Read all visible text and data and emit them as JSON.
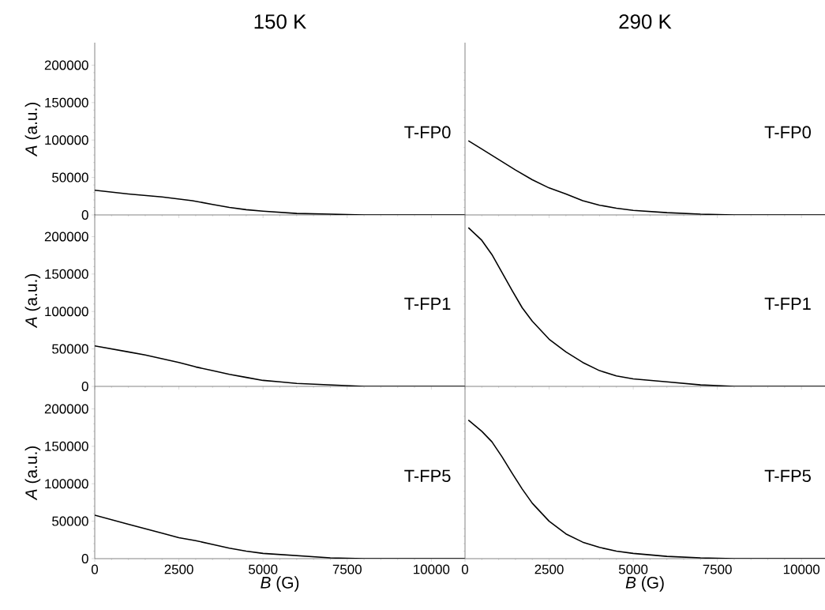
{
  "chart_data": [
    {
      "type": "line",
      "title": "150 K",
      "ylabel": "*A* (a.u.)",
      "annotations": [
        "T-FP0"
      ],
      "color": "#000000",
      "xlim": [
        0,
        11000
      ],
      "ylim": [
        0,
        230000
      ],
      "xticks": [
        0,
        2500,
        5000,
        7500,
        10000
      ],
      "yticks": [
        0,
        50000,
        100000,
        150000,
        200000
      ],
      "tick_labels": "y",
      "x": [
        0,
        1000,
        2000,
        2900,
        3500,
        4000,
        4500,
        5000,
        6000,
        7000,
        8000,
        9000,
        10000,
        11000
      ],
      "values": [
        33000,
        28000,
        24000,
        19000,
        14000,
        10000,
        7000,
        5000,
        2000,
        1000,
        0,
        0,
        0,
        0
      ]
    },
    {
      "type": "line",
      "title": "290 K",
      "annotations": [
        "T-FP0"
      ],
      "color": "#000000",
      "xlim": [
        0,
        10700
      ],
      "ylim": [
        0,
        230000
      ],
      "xticks": [
        0,
        2500,
        5000,
        7500,
        10000
      ],
      "yticks": [
        0,
        50000,
        100000,
        150000,
        200000
      ],
      "tick_labels": false,
      "x": [
        100,
        500,
        1000,
        1500,
        2000,
        2500,
        3000,
        3500,
        4000,
        4500,
        5000,
        6000,
        7000,
        8000,
        9000,
        10700
      ],
      "values": [
        99000,
        88000,
        74000,
        60000,
        47000,
        36000,
        28000,
        19000,
        13000,
        9000,
        6000,
        3000,
        1000,
        0,
        0,
        0
      ]
    },
    {
      "type": "line",
      "ylabel": "*A* (a.u.)",
      "annotations": [
        "T-FP1"
      ],
      "color": "#000000",
      "xlim": [
        0,
        11000
      ],
      "ylim": [
        0,
        230000
      ],
      "xticks": [
        0,
        2500,
        5000,
        7500,
        10000
      ],
      "yticks": [
        0,
        50000,
        100000,
        150000,
        200000
      ],
      "tick_labels": "y",
      "x": [
        0,
        1000,
        1500,
        2000,
        2500,
        3000,
        3500,
        4000,
        4500,
        5000,
        5500,
        6000,
        7000,
        8000,
        9000,
        11000
      ],
      "values": [
        54000,
        46000,
        42000,
        37000,
        32000,
        26000,
        21000,
        16000,
        12000,
        8000,
        6000,
        4000,
        2000,
        0,
        0,
        0
      ]
    },
    {
      "type": "line",
      "annotations": [
        "T-FP1"
      ],
      "color": "#000000",
      "xlim": [
        0,
        10700
      ],
      "ylim": [
        0,
        230000
      ],
      "xticks": [
        0,
        2500,
        5000,
        7500,
        10000
      ],
      "yticks": [
        0,
        50000,
        100000,
        150000,
        200000
      ],
      "tick_labels": false,
      "x": [
        100,
        500,
        800,
        1100,
        1400,
        1700,
        2000,
        2500,
        3000,
        3500,
        4000,
        4500,
        5000,
        6000,
        7000,
        8000,
        9000,
        10700
      ],
      "values": [
        212000,
        195000,
        176000,
        152000,
        128000,
        105000,
        87000,
        63000,
        46000,
        32000,
        21000,
        14000,
        10000,
        6000,
        2000,
        0,
        0,
        0
      ]
    },
    {
      "type": "line",
      "xlabel": "*B* (G)",
      "ylabel": "*A* (a.u.)",
      "annotations": [
        "T-FP5"
      ],
      "color": "#000000",
      "xlim": [
        0,
        11000
      ],
      "ylim": [
        0,
        230000
      ],
      "xticks": [
        0,
        2500,
        5000,
        7500,
        10000
      ],
      "yticks": [
        0,
        50000,
        100000,
        150000,
        200000
      ],
      "x": [
        0,
        1000,
        2000,
        2500,
        3000,
        3500,
        4000,
        4500,
        5000,
        6000,
        7000,
        8000,
        9000,
        11000
      ],
      "values": [
        58000,
        46000,
        34000,
        28000,
        24000,
        19000,
        14000,
        10000,
        7000,
        4000,
        1000,
        0,
        0,
        0
      ]
    },
    {
      "type": "line",
      "xlabel": "*B* (G)",
      "annotations": [
        "T-FP5"
      ],
      "color": "#000000",
      "xlim": [
        0,
        10700
      ],
      "ylim": [
        0,
        230000
      ],
      "xticks": [
        0,
        2500,
        5000,
        7500,
        10000
      ],
      "yticks": [
        0,
        50000,
        100000,
        150000,
        200000
      ],
      "tick_labels": "x",
      "x": [
        100,
        500,
        800,
        1100,
        1400,
        1700,
        2000,
        2500,
        3000,
        3500,
        4000,
        4500,
        5000,
        6000,
        7000,
        8000,
        9000,
        10700
      ],
      "values": [
        185000,
        170000,
        156000,
        136000,
        114000,
        93000,
        74000,
        50000,
        33000,
        22000,
        15000,
        10000,
        7000,
        3000,
        1000,
        0,
        0,
        0
      ]
    }
  ]
}
